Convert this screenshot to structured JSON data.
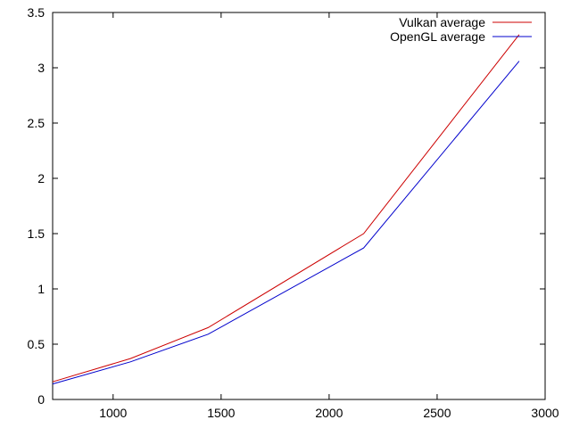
{
  "chart_data": {
    "type": "line",
    "title": "",
    "xlabel": "",
    "ylabel": "",
    "xlim": [
      720,
      3000
    ],
    "ylim": [
      0,
      3.5
    ],
    "x_ticks": [
      1000,
      1500,
      2000,
      2500,
      3000
    ],
    "x_tick_labels": [
      "1000",
      "1500",
      "2000",
      "2500",
      "3000"
    ],
    "y_ticks": [
      0,
      0.5,
      1,
      1.5,
      2,
      2.5,
      3,
      3.5
    ],
    "y_tick_labels": [
      "0",
      "0.5",
      "1",
      "1.5",
      "2",
      "2.5",
      "3",
      "3.5"
    ],
    "grid": false,
    "legend_position": "top-right",
    "series": [
      {
        "name": "Vulkan average",
        "color": "#cc0000",
        "points": [
          [
            720,
            0.16
          ],
          [
            1080,
            0.37
          ],
          [
            1440,
            0.65
          ],
          [
            2160,
            1.5
          ],
          [
            2880,
            3.3
          ]
        ]
      },
      {
        "name": "OpenGL average",
        "color": "#0000cc",
        "points": [
          [
            720,
            0.14
          ],
          [
            1080,
            0.34
          ],
          [
            1440,
            0.59
          ],
          [
            2160,
            1.37
          ],
          [
            2880,
            3.06
          ]
        ]
      }
    ]
  }
}
